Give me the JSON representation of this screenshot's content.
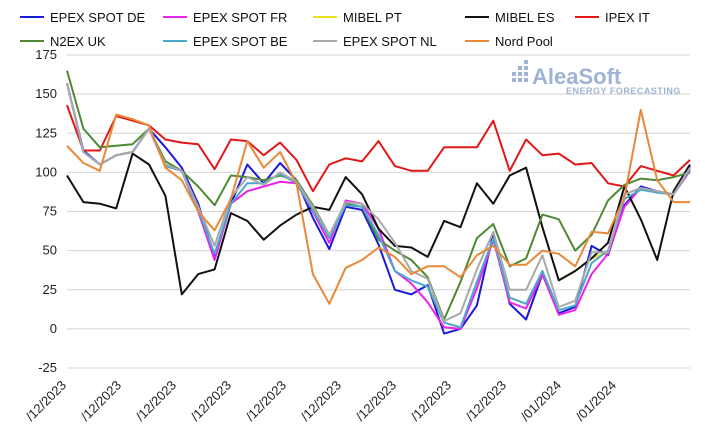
{
  "watermark": {
    "brand": "AleaSoft",
    "tagline": "ENERGY FORECASTING"
  },
  "chart_data": {
    "type": "line",
    "title": "",
    "xlabel": "",
    "ylabel": "",
    "ylim": [
      -25,
      175
    ],
    "yticks": [
      -25,
      0,
      25,
      50,
      75,
      100,
      125,
      150,
      175
    ],
    "grid": true,
    "legend_position": "top",
    "x_tick_labels": [
      "/12/2023",
      "/12/2023",
      "/12/2023",
      "/12/2023",
      "/12/2023",
      "/12/2023",
      "/12/2023",
      "/12/2023",
      "/12/2023",
      "/01/2024",
      "/01/2024"
    ],
    "x_tick_index": [
      0,
      4,
      8,
      12,
      16,
      20,
      24,
      28,
      32,
      36,
      40
    ],
    "n_points": 45,
    "series": [
      {
        "name": "EPEX SPOT DE",
        "color": "#1a1adb",
        "values": [
          157,
          114,
          105,
          111,
          113,
          128,
          116,
          103,
          80,
          46,
          80,
          105,
          93,
          106,
          95,
          71,
          51,
          78,
          76,
          54,
          25,
          22,
          28,
          -3,
          0,
          15,
          61,
          16,
          6,
          35,
          10,
          14,
          53,
          47,
          79,
          91,
          88,
          86,
          104
        ]
      },
      {
        "name": "EPEX SPOT FR",
        "color": "#ee22ee",
        "values": [
          157,
          113,
          105,
          111,
          113,
          128,
          104,
          101,
          75,
          44,
          80,
          88,
          91,
          94,
          93,
          75,
          55,
          82,
          80,
          64,
          37,
          29,
          17,
          1,
          0,
          26,
          57,
          17,
          13,
          35,
          9,
          12,
          35,
          48,
          78,
          90,
          88,
          86,
          101
        ]
      },
      {
        "name": "MIBEL PT",
        "color": "#e8e020",
        "values": [
          null,
          null,
          null,
          null,
          null,
          null,
          null,
          null,
          null,
          null,
          null,
          null,
          null,
          null,
          null,
          null,
          null,
          null,
          null,
          null,
          null,
          null,
          null,
          null,
          null,
          null,
          null,
          null,
          null,
          null,
          31,
          37,
          45,
          49,
          null,
          null,
          null,
          null,
          null
        ]
      },
      {
        "name": "MIBEL ES",
        "color": "#111111",
        "values": [
          98,
          81,
          80,
          77,
          112,
          105,
          85,
          22,
          35,
          38,
          74,
          69,
          57,
          66,
          73,
          78,
          76,
          97,
          86,
          64,
          53,
          52,
          46,
          69,
          65,
          93,
          80,
          98,
          103,
          65,
          31,
          37,
          45,
          55,
          91,
          70,
          44,
          88,
          105
        ]
      },
      {
        "name": "IPEX IT",
        "color": "#e21818",
        "values": [
          143,
          114,
          114,
          136,
          133,
          130,
          121,
          119,
          118,
          102,
          121,
          120,
          111,
          119,
          108,
          88,
          105,
          109,
          107,
          120,
          104,
          101,
          101,
          116,
          116,
          116,
          133,
          101,
          121,
          111,
          112,
          105,
          106,
          93,
          91,
          104,
          101,
          98,
          108
        ]
      },
      {
        "name": "N2EX UK",
        "color": "#4d8a33",
        "values": [
          165,
          128,
          116,
          117,
          118,
          128,
          107,
          101,
          91,
          79,
          98,
          97,
          95,
          98,
          95,
          79,
          60,
          80,
          78,
          57,
          50,
          44,
          33,
          6,
          30,
          58,
          67,
          40,
          45,
          73,
          70,
          50,
          60,
          82,
          92,
          96,
          95,
          97,
          100
        ]
      },
      {
        "name": "EPEX SPOT BE",
        "color": "#4aa8c8",
        "values": [
          157,
          113,
          105,
          111,
          113,
          128,
          104,
          101,
          76,
          48,
          80,
          93,
          93,
          99,
          93,
          76,
          58,
          79,
          78,
          60,
          37,
          31,
          27,
          4,
          1,
          30,
          58,
          20,
          16,
          37,
          12,
          15,
          42,
          50,
          83,
          89,
          87,
          86,
          102
        ]
      },
      {
        "name": "EPEX SPOT NL",
        "color": "#a9a9a9",
        "values": [
          157,
          113,
          105,
          111,
          113,
          128,
          105,
          101,
          78,
          53,
          84,
          97,
          92,
          100,
          94,
          78,
          60,
          81,
          80,
          70,
          55,
          37,
          32,
          5,
          10,
          38,
          62,
          25,
          25,
          47,
          14,
          18,
          49,
          49,
          86,
          90,
          88,
          86,
          103
        ]
      },
      {
        "name": "Nord Pool",
        "color": "#e8893a",
        "values": [
          117,
          106,
          101,
          137,
          134,
          130,
          103,
          95,
          75,
          63,
          83,
          120,
          103,
          113,
          93,
          35,
          16,
          39,
          44,
          52,
          46,
          35,
          40,
          40,
          33,
          47,
          53,
          41,
          41,
          50,
          48,
          40,
          62,
          61,
          84,
          140,
          95,
          81,
          81
        ]
      }
    ]
  }
}
